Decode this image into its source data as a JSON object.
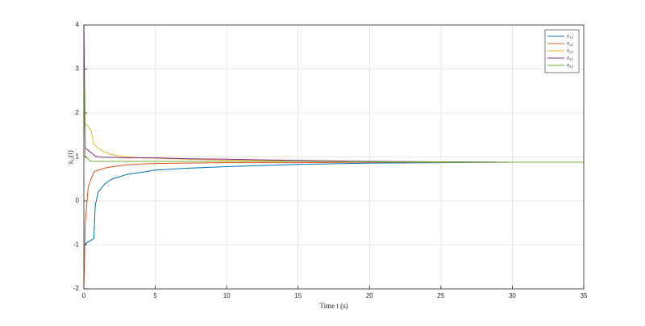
{
  "chart_data": {
    "type": "line",
    "xlabel": "Time t (s)",
    "ylabel": "xᵢ₂(t)",
    "x": [
      0,
      0.1,
      0.3,
      0.5,
      0.7,
      0.8,
      1,
      1.5,
      2,
      3,
      4,
      5,
      7,
      10,
      15,
      20,
      25,
      30,
      35
    ],
    "series": [
      {
        "name": "x₁₂",
        "color": "#0072BD",
        "values": [
          -1,
          -0.98,
          -0.93,
          -0.9,
          -0.85,
          -0.1,
          0.2,
          0.4,
          0.5,
          0.6,
          0.65,
          0.7,
          0.74,
          0.78,
          0.83,
          0.86,
          0.87,
          0.88,
          0.88
        ]
      },
      {
        "name": "x₂₂",
        "color": "#D95319",
        "values": [
          -2,
          -0.5,
          0.3,
          0.5,
          0.65,
          0.68,
          0.7,
          0.75,
          0.78,
          0.82,
          0.84,
          0.85,
          0.86,
          0.87,
          0.87,
          0.88,
          0.88,
          0.88,
          0.88
        ]
      },
      {
        "name": "x₃₂",
        "color": "#EDB120",
        "values": [
          2,
          1.75,
          1.7,
          1.6,
          1.3,
          1.25,
          1.2,
          1.1,
          1.05,
          1.0,
          0.98,
          0.97,
          0.95,
          0.93,
          0.91,
          0.89,
          0.88,
          0.88,
          0.88
        ]
      },
      {
        "name": "x₄₂",
        "color": "#7E2F8E",
        "values": [
          4,
          1.2,
          1.15,
          1.1,
          1.05,
          1.02,
          1.0,
          0.99,
          0.99,
          0.98,
          0.98,
          0.98,
          0.96,
          0.95,
          0.92,
          0.9,
          0.89,
          0.88,
          0.88
        ]
      },
      {
        "name": "x₅₂",
        "color": "#77AC30",
        "values": [
          3,
          1.0,
          0.95,
          0.9,
          0.9,
          0.9,
          0.9,
          0.9,
          0.9,
          0.9,
          0.9,
          0.9,
          0.9,
          0.9,
          0.9,
          0.89,
          0.89,
          0.88,
          0.88
        ]
      }
    ],
    "xlim": [
      0,
      35
    ],
    "xticks": [
      0,
      5,
      10,
      15,
      20,
      25,
      30,
      35
    ],
    "ylim": [
      -2,
      4
    ],
    "yticks": [
      -2,
      -1,
      0,
      1,
      2,
      3,
      4
    ],
    "grid": true,
    "legend": "northeast"
  }
}
